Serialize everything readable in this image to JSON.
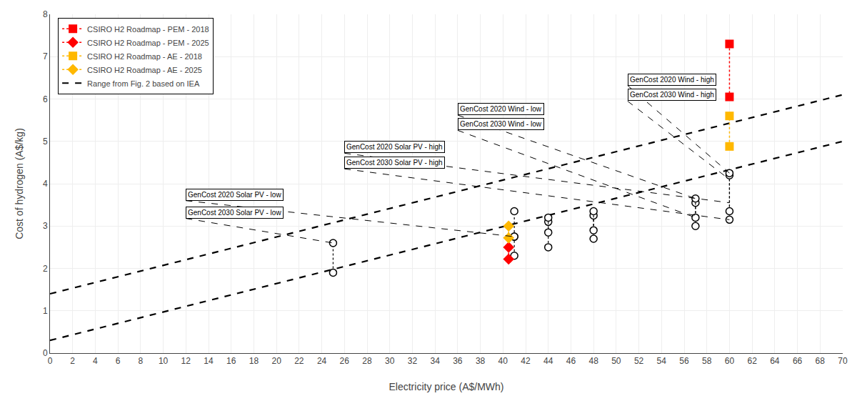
{
  "chart_data": {
    "type": "scatter",
    "xlabel": "Electricity price (A$/MWh)",
    "ylabel": "Cost of hydrogen (A$/kg)",
    "xlim": [
      0,
      70
    ],
    "ylim": [
      0,
      8
    ],
    "xticks": [
      0,
      2,
      4,
      6,
      8,
      10,
      12,
      14,
      16,
      18,
      20,
      22,
      24,
      26,
      28,
      30,
      32,
      34,
      36,
      38,
      40,
      42,
      44,
      46,
      48,
      50,
      52,
      54,
      56,
      58,
      60,
      62,
      64,
      66,
      68,
      70
    ],
    "yticks": [
      0,
      1,
      2,
      3,
      4,
      5,
      6,
      7,
      8
    ],
    "grid": true,
    "legend": "upper left",
    "series": [
      {
        "name": "CSIRO H2 Roadmap - PEM - 2018",
        "color": "#FF0000",
        "marker": "square",
        "line_style": "dotted",
        "x": [
          60,
          60
        ],
        "y": [
          7.3,
          6.05
        ]
      },
      {
        "name": "CSIRO H2 Roadmap - PEM - 2025",
        "color": "#FF0000",
        "marker": "diamond",
        "line_style": "dotted",
        "x": [
          40.5,
          40.5
        ],
        "y": [
          2.22,
          2.5
        ]
      },
      {
        "name": "CSIRO H2 Roadmap - AE - 2018",
        "color": "#FFB800",
        "marker": "square",
        "line_style": "dotted",
        "x": [
          60,
          60
        ],
        "y": [
          4.88,
          5.6
        ]
      },
      {
        "name": "CSIRO H2 Roadmap - AE - 2025",
        "color": "#FFB800",
        "marker": "diamond",
        "line_style": "dotted",
        "x": [
          40.5,
          40.5
        ],
        "y": [
          2.72,
          3.0
        ]
      },
      {
        "name": "Range from Fig. 2 based on IEA",
        "color": "black",
        "line_style": "dashed",
        "segments": [
          {
            "x": [
              0,
              70
            ],
            "y": [
              0.3,
              5.0
            ]
          },
          {
            "x": [
              0,
              70
            ],
            "y": [
              1.4,
              6.1
            ]
          }
        ]
      },
      {
        "color": "black",
        "marker": "circle",
        "line_style": "dotted",
        "x": [
          25,
          41,
          44,
          48,
          57,
          60
        ],
        "low": [
          1.9,
          2.3,
          2.5,
          2.7,
          3.0,
          3.15
        ],
        "high": [
          2.6,
          2.75,
          3.1,
          3.25,
          3.55,
          4.2
        ]
      },
      {
        "color": "black",
        "marker": "circle",
        "line_style": "dotted",
        "x": [
          41,
          44,
          48,
          57,
          60
        ],
        "low": [
          2.75,
          2.85,
          2.9,
          3.2,
          3.35
        ],
        "high": [
          3.35,
          3.2,
          3.35,
          3.65,
          4.25
        ]
      }
    ],
    "annotations": [
      {
        "text": "GenCost 2020 Solar PV - high",
        "text_x": 26,
        "text_y": 4.72,
        "x": 60,
        "y": 3.55
      },
      {
        "text": "GenCost 2030 Solar PV - high",
        "text_x": 26,
        "text_y": 4.35,
        "x": 60,
        "y": 3.15
      },
      {
        "text": "GenCost 2020 Solar PV - low",
        "text_x": 12,
        "text_y": 3.6,
        "x": 41,
        "y": 2.75
      },
      {
        "text": "GenCost 2030 Solar PV - low",
        "text_x": 12,
        "text_y": 3.18,
        "x": 25,
        "y": 2.6
      },
      {
        "text": "GenCost 2020 Wind - high",
        "text_x": 51,
        "text_y": 6.32,
        "x": 60,
        "y": 4.25
      },
      {
        "text": "GenCost 2030 Wind - high",
        "text_x": 51,
        "text_y": 5.95,
        "x": 60,
        "y": 4.1
      },
      {
        "text": "GenCost 2020 Wind - low",
        "text_x": 36,
        "text_y": 5.62,
        "x": 57,
        "y": 3.65
      },
      {
        "text": "GenCost 2030 Wind - low",
        "text_x": 36,
        "text_y": 5.26,
        "x": 57,
        "y": 3.2
      }
    ]
  }
}
